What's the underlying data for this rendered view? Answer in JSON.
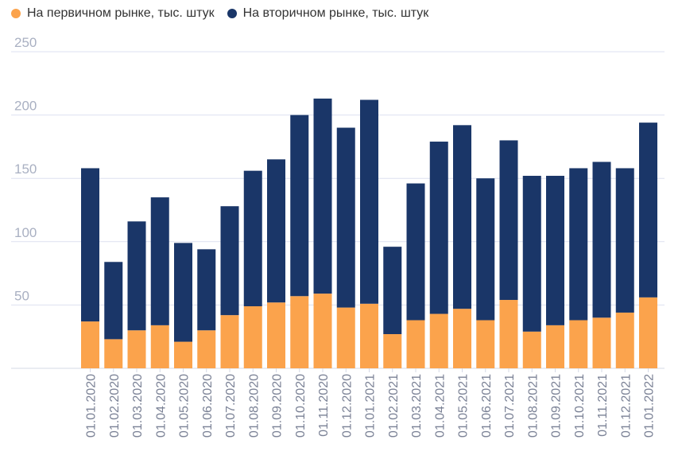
{
  "chart_data": {
    "type": "bar",
    "stacked": true,
    "title": "",
    "xlabel": "",
    "ylabel": "",
    "ylim": [
      0,
      250
    ],
    "yticks": [
      50,
      100,
      150,
      200,
      250
    ],
    "grid": true,
    "legend_position": "top-left",
    "categories": [
      "01.01.2020",
      "01.02.2020",
      "01.03.2020",
      "01.04.2020",
      "01.05.2020",
      "01.06.2020",
      "01.07.2020",
      "01.08.2020",
      "01.09.2020",
      "01.10.2020",
      "01.11.2020",
      "01.12.2020",
      "01.01.2021",
      "01.02.2021",
      "01.03.2021",
      "01.04.2021",
      "01.05.2021",
      "01.06.2021",
      "01.07.2021",
      "01.08.2021",
      "01.09.2021",
      "01.10.2021",
      "01.11.2021",
      "01.12.2021",
      "01.01.2022"
    ],
    "series": [
      {
        "name": "На первичном рынке, тыс. штук",
        "color": "#FBA34C",
        "values": [
          37,
          23,
          30,
          34,
          21,
          30,
          42,
          49,
          52,
          57,
          59,
          48,
          51,
          27,
          38,
          43,
          47,
          38,
          54,
          29,
          34,
          38,
          40,
          44,
          56
        ]
      },
      {
        "name": "На вторичном рынке, тыс. штук",
        "color": "#1A3668",
        "values": [
          121,
          61,
          86,
          101,
          78,
          64,
          86,
          107,
          113,
          143,
          154,
          142,
          161,
          69,
          108,
          136,
          145,
          112,
          126,
          123,
          118,
          120,
          123,
          114,
          138
        ]
      }
    ]
  }
}
